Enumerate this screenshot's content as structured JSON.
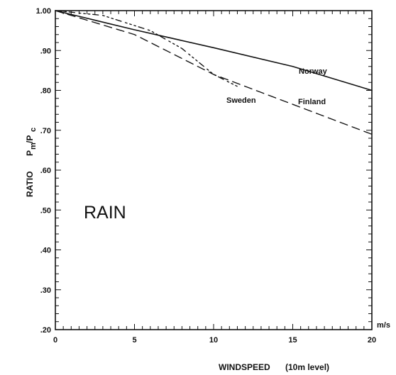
{
  "chart_data": {
    "type": "line",
    "xlabel": "WINDSPEED",
    "xlabel_note": "(10m level)",
    "x_unit": "m/s",
    "ylabel_prefix": "RATIO",
    "ylabel_main": "P",
    "ylabel_sub_main": "m",
    "ylabel_mid": "/P",
    "ylabel_sub_end": "c",
    "xlim": [
      0,
      20
    ],
    "ylim": [
      0.2,
      1.0
    ],
    "x_ticks": [
      "0",
      "5",
      "10",
      "15",
      "20"
    ],
    "y_ticks": [
      ".20",
      ".30",
      ".40",
      ".50",
      ".60",
      ".70",
      ".80",
      ".90",
      "1.00"
    ],
    "annotation": "RAIN",
    "series": [
      {
        "name": "Norway",
        "style": "solid",
        "x": [
          0,
          5,
          10,
          15,
          20
        ],
        "y": [
          1.0,
          0.952,
          0.907,
          0.86,
          0.8
        ]
      },
      {
        "name": "Sweden",
        "style": "dotted",
        "x": [
          0,
          3,
          6,
          8,
          10,
          11.5
        ],
        "y": [
          1.0,
          0.988,
          0.95,
          0.905,
          0.84,
          0.81
        ]
      },
      {
        "name": "Finland",
        "style": "dashed",
        "x": [
          0,
          5,
          10,
          15,
          20
        ],
        "y": [
          1.0,
          0.94,
          0.84,
          0.765,
          0.69
        ]
      }
    ]
  }
}
